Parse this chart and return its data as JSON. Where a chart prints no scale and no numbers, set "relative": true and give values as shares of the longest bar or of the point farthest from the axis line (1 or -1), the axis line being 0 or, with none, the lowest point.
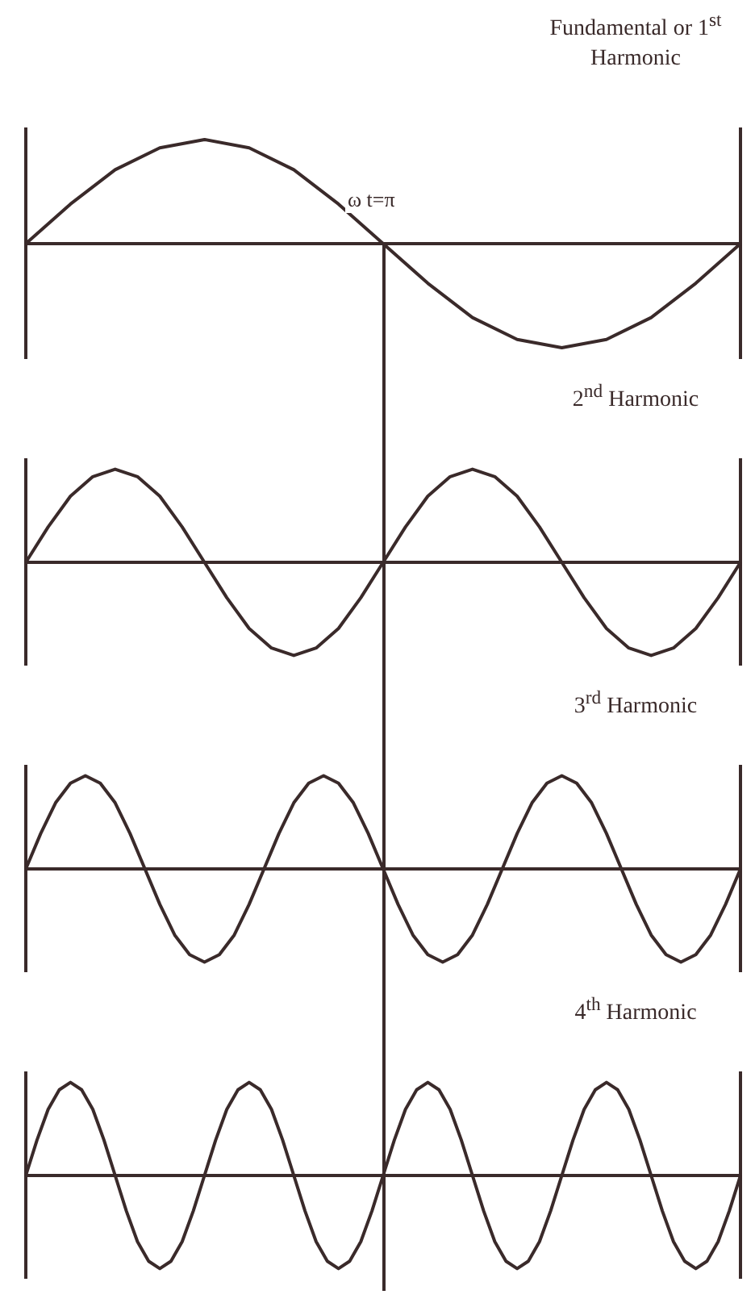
{
  "chart_data": [
    {
      "type": "line",
      "title": "Fundamental or 1$^{st}$ Harmonic",
      "relative": true,
      "marker": "none",
      "annotations": [
        "ω t=π"
      ],
      "categories": [
        null,
        null,
        null,
        null,
        null,
        null,
        null,
        null,
        null,
        null,
        null,
        null,
        null,
        null,
        null,
        null,
        null
      ],
      "series": [
        {
          "color": "#3a2a2a",
          "values": [
            0,
            0.38,
            0.71,
            0.92,
            1,
            0.92,
            0.71,
            0.38,
            0,
            -0.38,
            -0.71,
            -0.92,
            -1,
            -0.92,
            -0.71,
            -0.38,
            0
          ]
        }
      ]
    },
    {
      "type": "line",
      "title": "2$^{nd}$ Harmonic",
      "relative": true,
      "marker": "none",
      "categories": [
        null,
        null,
        null,
        null,
        null,
        null,
        null,
        null,
        null,
        null,
        null,
        null,
        null,
        null,
        null,
        null,
        null,
        null,
        null,
        null,
        null,
        null,
        null,
        null,
        null,
        null,
        null,
        null,
        null,
        null,
        null,
        null,
        null
      ],
      "series": [
        {
          "color": "#3a2a2a",
          "values": [
            0,
            0.38,
            0.71,
            0.92,
            1,
            0.92,
            0.71,
            0.38,
            0,
            -0.38,
            -0.71,
            -0.92,
            -1,
            -0.92,
            -0.71,
            -0.38,
            0,
            0.38,
            0.71,
            0.92,
            1,
            0.92,
            0.71,
            0.38,
            0,
            -0.38,
            -0.71,
            -0.92,
            -1,
            -0.92,
            -0.71,
            -0.38,
            0
          ]
        }
      ]
    },
    {
      "type": "line",
      "title": "3$^{rd}$ Harmonic",
      "relative": true,
      "marker": "none",
      "categories": [
        null,
        null,
        null,
        null,
        null,
        null,
        null,
        null,
        null,
        null,
        null,
        null,
        null,
        null,
        null,
        null,
        null,
        null,
        null,
        null,
        null,
        null,
        null,
        null,
        null,
        null,
        null,
        null,
        null,
        null,
        null,
        null,
        null,
        null,
        null,
        null,
        null,
        null,
        null,
        null,
        null,
        null,
        null,
        null,
        null,
        null,
        null,
        null,
        null
      ],
      "series": [
        {
          "color": "#3a2a2a",
          "values": [
            0,
            0.38,
            0.71,
            0.92,
            1,
            0.92,
            0.71,
            0.38,
            0,
            -0.38,
            -0.71,
            -0.92,
            -1,
            -0.92,
            -0.71,
            -0.38,
            0,
            0.38,
            0.71,
            0.92,
            1,
            0.92,
            0.71,
            0.38,
            0,
            -0.38,
            -0.71,
            -0.92,
            -1,
            -0.92,
            -0.71,
            -0.38,
            0,
            0.38,
            0.71,
            0.92,
            1,
            0.92,
            0.71,
            0.38,
            0,
            -0.38,
            -0.71,
            -0.92,
            -1,
            -0.92,
            -0.71,
            -0.38,
            0
          ]
        }
      ]
    },
    {
      "type": "line",
      "title": "4$^{th}$ Harmonic",
      "relative": true,
      "marker": "none",
      "categories": [
        null,
        null,
        null,
        null,
        null,
        null,
        null,
        null,
        null,
        null,
        null,
        null,
        null,
        null,
        null,
        null,
        null,
        null,
        null,
        null,
        null,
        null,
        null,
        null,
        null,
        null,
        null,
        null,
        null,
        null,
        null,
        null,
        null,
        null,
        null,
        null,
        null,
        null,
        null,
        null,
        null,
        null,
        null,
        null,
        null,
        null,
        null,
        null,
        null,
        null,
        null,
        null,
        null,
        null,
        null,
        null,
        null,
        null,
        null,
        null,
        null,
        null,
        null,
        null,
        null
      ],
      "series": [
        {
          "color": "#3a2a2a",
          "values": [
            0,
            0.38,
            0.71,
            0.92,
            1,
            0.92,
            0.71,
            0.38,
            0,
            -0.38,
            -0.71,
            -0.92,
            -1,
            -0.92,
            -0.71,
            -0.38,
            0,
            0.38,
            0.71,
            0.92,
            1,
            0.92,
            0.71,
            0.38,
            0,
            -0.38,
            -0.71,
            -0.92,
            -1,
            -0.92,
            -0.71,
            -0.38,
            0,
            0.38,
            0.71,
            0.92,
            1,
            0.92,
            0.71,
            0.38,
            0,
            -0.38,
            -0.71,
            -0.92,
            -1,
            -0.92,
            -0.71,
            -0.38,
            0,
            0.38,
            0.71,
            0.92,
            1,
            0.92,
            0.71,
            0.38,
            0,
            -0.38,
            -0.71,
            -0.92,
            -1,
            -0.92,
            -0.71,
            -0.38,
            0
          ]
        }
      ]
    }
  ]
}
